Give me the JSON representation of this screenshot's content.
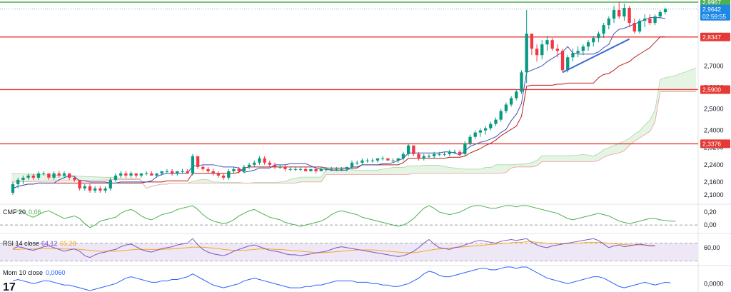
{
  "chart_data": [
    {
      "type": "candlestick",
      "panel": "price",
      "ylim": [
        2.07,
        3.0
      ],
      "y_ticks": [
        "2,7000",
        "2,6000",
        "2,5000",
        "2,4000",
        "2,3200",
        "2,2400",
        "2,1600",
        "2,1000"
      ],
      "candles": [
        [
          2.11,
          2.16,
          2.1,
          2.15
        ],
        [
          2.15,
          2.18,
          2.13,
          2.17
        ],
        [
          2.17,
          2.19,
          2.15,
          2.18
        ],
        [
          2.18,
          2.2,
          2.17,
          2.19
        ],
        [
          2.19,
          2.2,
          2.17,
          2.18
        ],
        [
          2.18,
          2.21,
          2.17,
          2.2
        ],
        [
          2.2,
          2.21,
          2.19,
          2.2
        ],
        [
          2.2,
          2.2,
          2.17,
          2.18
        ],
        [
          2.18,
          2.21,
          2.17,
          2.2
        ],
        [
          2.2,
          2.21,
          2.18,
          2.19
        ],
        [
          2.19,
          2.21,
          2.18,
          2.2
        ],
        [
          2.2,
          2.2,
          2.17,
          2.18
        ],
        [
          2.18,
          2.19,
          2.16,
          2.17
        ],
        [
          2.17,
          2.17,
          2.12,
          2.13
        ],
        [
          2.13,
          2.15,
          2.12,
          2.14
        ],
        [
          2.14,
          2.15,
          2.11,
          2.12
        ],
        [
          2.12,
          2.14,
          2.11,
          2.13
        ],
        [
          2.13,
          2.14,
          2.11,
          2.12
        ],
        [
          2.12,
          2.14,
          2.11,
          2.13
        ],
        [
          2.13,
          2.18,
          2.12,
          2.17
        ],
        [
          2.17,
          2.2,
          2.16,
          2.19
        ],
        [
          2.19,
          2.21,
          2.18,
          2.2
        ],
        [
          2.2,
          2.21,
          2.18,
          2.19
        ],
        [
          2.19,
          2.21,
          2.18,
          2.2
        ],
        [
          2.2,
          2.2,
          2.18,
          2.19
        ],
        [
          2.19,
          2.2,
          2.18,
          2.2
        ],
        [
          2.2,
          2.21,
          2.19,
          2.2
        ],
        [
          2.2,
          2.21,
          2.19,
          2.19
        ],
        [
          2.19,
          2.2,
          2.18,
          2.2
        ],
        [
          2.2,
          2.21,
          2.19,
          2.21
        ],
        [
          2.21,
          2.22,
          2.2,
          2.21
        ],
        [
          2.21,
          2.22,
          2.19,
          2.2
        ],
        [
          2.2,
          2.21,
          2.19,
          2.21
        ],
        [
          2.21,
          2.22,
          2.2,
          2.21
        ],
        [
          2.21,
          2.22,
          2.2,
          2.2
        ],
        [
          2.2,
          2.29,
          2.19,
          2.28
        ],
        [
          2.28,
          2.28,
          2.22,
          2.23
        ],
        [
          2.23,
          2.24,
          2.21,
          2.22
        ],
        [
          2.22,
          2.23,
          2.2,
          2.21
        ],
        [
          2.21,
          2.22,
          2.19,
          2.2
        ],
        [
          2.2,
          2.21,
          2.18,
          2.19
        ],
        [
          2.19,
          2.2,
          2.17,
          2.18
        ],
        [
          2.18,
          2.22,
          2.17,
          2.21
        ],
        [
          2.21,
          2.23,
          2.2,
          2.22
        ],
        [
          2.22,
          2.23,
          2.2,
          2.21
        ],
        [
          2.21,
          2.24,
          2.2,
          2.23
        ],
        [
          2.23,
          2.25,
          2.22,
          2.24
        ],
        [
          2.24,
          2.26,
          2.23,
          2.25
        ],
        [
          2.25,
          2.28,
          2.24,
          2.27
        ],
        [
          2.27,
          2.28,
          2.24,
          2.25
        ],
        [
          2.25,
          2.26,
          2.23,
          2.24
        ],
        [
          2.24,
          2.25,
          2.22,
          2.23
        ],
        [
          2.23,
          2.24,
          2.22,
          2.23
        ],
        [
          2.23,
          2.24,
          2.21,
          2.22
        ],
        [
          2.22,
          2.23,
          2.21,
          2.22
        ],
        [
          2.22,
          2.23,
          2.21,
          2.22
        ],
        [
          2.22,
          2.23,
          2.21,
          2.22
        ],
        [
          2.22,
          2.23,
          2.21,
          2.21
        ],
        [
          2.21,
          2.22,
          2.21,
          2.22
        ],
        [
          2.22,
          2.22,
          2.2,
          2.21
        ],
        [
          2.21,
          2.23,
          2.21,
          2.22
        ],
        [
          2.22,
          2.23,
          2.21,
          2.22
        ],
        [
          2.22,
          2.23,
          2.21,
          2.22
        ],
        [
          2.22,
          2.23,
          2.21,
          2.22
        ],
        [
          2.22,
          2.23,
          2.21,
          2.22
        ],
        [
          2.22,
          2.23,
          2.21,
          2.23
        ],
        [
          2.23,
          2.26,
          2.22,
          2.25
        ],
        [
          2.25,
          2.26,
          2.24,
          2.25
        ],
        [
          2.25,
          2.27,
          2.24,
          2.26
        ],
        [
          2.26,
          2.27,
          2.25,
          2.26
        ],
        [
          2.26,
          2.27,
          2.25,
          2.26
        ],
        [
          2.26,
          2.27,
          2.25,
          2.27
        ],
        [
          2.27,
          2.28,
          2.26,
          2.27
        ],
        [
          2.27,
          2.27,
          2.26,
          2.26
        ],
        [
          2.26,
          2.27,
          2.25,
          2.26
        ],
        [
          2.26,
          2.27,
          2.25,
          2.27
        ],
        [
          2.27,
          2.3,
          2.26,
          2.29
        ],
        [
          2.29,
          2.34,
          2.28,
          2.33
        ],
        [
          2.33,
          2.33,
          2.28,
          2.29
        ],
        [
          2.29,
          2.3,
          2.26,
          2.27
        ],
        [
          2.27,
          2.29,
          2.26,
          2.28
        ],
        [
          2.28,
          2.29,
          2.27,
          2.28
        ],
        [
          2.28,
          2.3,
          2.27,
          2.29
        ],
        [
          2.29,
          2.3,
          2.28,
          2.29
        ],
        [
          2.29,
          2.3,
          2.28,
          2.29
        ],
        [
          2.29,
          2.31,
          2.28,
          2.3
        ],
        [
          2.3,
          2.31,
          2.29,
          2.3
        ],
        [
          2.3,
          2.31,
          2.28,
          2.29
        ],
        [
          2.29,
          2.35,
          2.28,
          2.34
        ],
        [
          2.34,
          2.38,
          2.33,
          2.37
        ],
        [
          2.37,
          2.4,
          2.36,
          2.39
        ],
        [
          2.39,
          2.41,
          2.37,
          2.4
        ],
        [
          2.4,
          2.42,
          2.38,
          2.41
        ],
        [
          2.41,
          2.44,
          2.4,
          2.43
        ],
        [
          2.43,
          2.46,
          2.42,
          2.45
        ],
        [
          2.45,
          2.5,
          2.44,
          2.49
        ],
        [
          2.49,
          2.53,
          2.48,
          2.52
        ],
        [
          2.52,
          2.56,
          2.51,
          2.55
        ],
        [
          2.55,
          2.59,
          2.54,
          2.58
        ],
        [
          2.58,
          2.68,
          2.57,
          2.67
        ],
        [
          2.67,
          2.96,
          2.62,
          2.85
        ],
        [
          2.85,
          2.85,
          2.75,
          2.78
        ],
        [
          2.78,
          2.8,
          2.72,
          2.75
        ],
        [
          2.75,
          2.82,
          2.73,
          2.8
        ],
        [
          2.8,
          2.84,
          2.77,
          2.82
        ],
        [
          2.82,
          2.83,
          2.77,
          2.78
        ],
        [
          2.78,
          2.8,
          2.74,
          2.77
        ],
        [
          2.77,
          2.78,
          2.67,
          2.68
        ],
        [
          2.68,
          2.75,
          2.67,
          2.74
        ],
        [
          2.74,
          2.78,
          2.72,
          2.76
        ],
        [
          2.76,
          2.79,
          2.74,
          2.77
        ],
        [
          2.77,
          2.8,
          2.75,
          2.79
        ],
        [
          2.79,
          2.82,
          2.77,
          2.81
        ],
        [
          2.81,
          2.84,
          2.79,
          2.83
        ],
        [
          2.83,
          2.86,
          2.81,
          2.85
        ],
        [
          2.85,
          2.9,
          2.83,
          2.89
        ],
        [
          2.89,
          2.93,
          2.87,
          2.92
        ],
        [
          2.92,
          2.98,
          2.9,
          2.96
        ],
        [
          2.96,
          3.0,
          2.92,
          2.93
        ],
        [
          2.93,
          2.99,
          2.91,
          2.97
        ],
        [
          2.97,
          2.98,
          2.88,
          2.9
        ],
        [
          2.9,
          2.92,
          2.85,
          2.86
        ],
        [
          2.86,
          2.92,
          2.85,
          2.91
        ],
        [
          2.91,
          2.94,
          2.88,
          2.92
        ],
        [
          2.92,
          2.94,
          2.89,
          2.9
        ],
        [
          2.9,
          2.94,
          2.89,
          2.93
        ],
        [
          2.93,
          2.96,
          2.92,
          2.95
        ],
        [
          2.95,
          2.97,
          2.94,
          2.964
        ]
      ],
      "horizontal_levels": [
        {
          "value": 2.9967,
          "label": "2,9967",
          "color": "#4caf50"
        },
        {
          "value": 2.8347,
          "label": "2,8347",
          "color": "#e53935"
        },
        {
          "value": 2.59,
          "label": "2,5900",
          "color": "#e53935"
        },
        {
          "value": 2.3376,
          "label": "2,3376",
          "color": "#e53935"
        }
      ],
      "last_price": {
        "value": 2.9642,
        "label": "2,9642",
        "countdown": "02:59:55",
        "color": "#1e88e5"
      }
    },
    {
      "type": "line",
      "panel": "cmf",
      "name": "CMF 20",
      "value_label": "0,06",
      "ylim": [
        -0.12,
        0.3
      ],
      "y_ticks": [
        "0,20",
        "0,00"
      ],
      "color": "#4caf50",
      "values": [
        0.18,
        0.22,
        0.2,
        0.15,
        0.12,
        0.16,
        0.2,
        0.22,
        0.18,
        0.14,
        0.1,
        0.12,
        0.14,
        0.1,
        0.02,
        -0.04,
        0.0,
        0.06,
        0.08,
        0.1,
        0.12,
        0.18,
        0.22,
        0.24,
        0.2,
        0.14,
        0.1,
        0.08,
        0.12,
        0.16,
        0.18,
        0.2,
        0.24,
        0.26,
        0.28,
        0.3,
        0.24,
        0.16,
        0.1,
        0.06,
        0.04,
        0.02,
        0.04,
        0.08,
        0.14,
        0.18,
        0.22,
        0.24,
        0.2,
        0.16,
        0.12,
        0.1,
        0.08,
        0.04,
        0.02,
        0.0,
        -0.02,
        0.0,
        0.02,
        0.04,
        0.06,
        0.1,
        0.16,
        0.2,
        0.22,
        0.2,
        0.18,
        0.16,
        0.12,
        0.1,
        0.08,
        0.06,
        0.04,
        0.02,
        0.0,
        -0.02,
        0.0,
        0.04,
        0.1,
        0.18,
        0.26,
        0.3,
        0.26,
        0.2,
        0.18,
        0.16,
        0.18,
        0.2,
        0.24,
        0.28,
        0.3,
        0.3,
        0.28,
        0.26,
        0.26,
        0.28,
        0.3,
        0.3,
        0.28,
        0.3,
        0.3,
        0.28,
        0.26,
        0.24,
        0.22,
        0.2,
        0.18,
        0.14,
        0.1,
        0.08,
        0.1,
        0.12,
        0.14,
        0.16,
        0.18,
        0.16,
        0.14,
        0.1,
        0.06,
        0.04,
        0.02,
        0.04,
        0.06,
        0.08,
        0.1,
        0.1,
        0.08,
        0.07,
        0.06,
        0.06
      ]
    },
    {
      "type": "line",
      "panel": "rsi",
      "name": "RSI 14 close",
      "value_label": "64,12",
      "ma_label": "65,28",
      "ylim": [
        20,
        90
      ],
      "y_ticks": [
        "60,00"
      ],
      "bands": [
        70,
        30
      ],
      "color": "#7e57c2",
      "ma_color": "#f9a825",
      "values": [
        58,
        62,
        60,
        56,
        54,
        58,
        62,
        64,
        60,
        56,
        52,
        55,
        57,
        52,
        42,
        38,
        44,
        48,
        50,
        54,
        56,
        62,
        66,
        68,
        62,
        56,
        52,
        50,
        54,
        58,
        60,
        62,
        66,
        68,
        70,
        80,
        66,
        56,
        50,
        46,
        44,
        42,
        46,
        52,
        56,
        60,
        64,
        66,
        62,
        58,
        54,
        52,
        50,
        46,
        44,
        44,
        42,
        44,
        46,
        48,
        50,
        52,
        56,
        60,
        62,
        60,
        58,
        56,
        54,
        52,
        50,
        48,
        46,
        44,
        42,
        40,
        42,
        46,
        52,
        60,
        70,
        78,
        68,
        60,
        58,
        56,
        60,
        62,
        66,
        70,
        74,
        76,
        74,
        72,
        70,
        74,
        76,
        78,
        76,
        78,
        80,
        72,
        66,
        62,
        60,
        64,
        66,
        68,
        70,
        72,
        74,
        76,
        78,
        80,
        76,
        68,
        60,
        64,
        66,
        62,
        64,
        66,
        68,
        66,
        64,
        64
      ],
      "ma": [
        56,
        56,
        57,
        57,
        57,
        57,
        58,
        58,
        58,
        58,
        57,
        57,
        57,
        56,
        55,
        54,
        53,
        52,
        52,
        52,
        52,
        53,
        54,
        55,
        56,
        56,
        56,
        56,
        56,
        56,
        57,
        57,
        58,
        59,
        60,
        61,
        61,
        61,
        60,
        59,
        58,
        56,
        55,
        54,
        54,
        54,
        55,
        56,
        57,
        57,
        57,
        56,
        56,
        55,
        54,
        53,
        52,
        51,
        50,
        49,
        49,
        49,
        50,
        51,
        52,
        53,
        54,
        55,
        55,
        55,
        55,
        54,
        53,
        52,
        51,
        50,
        49,
        49,
        49,
        50,
        52,
        54,
        56,
        57,
        58,
        59,
        60,
        61,
        62,
        63,
        64,
        65,
        66,
        67,
        68,
        69,
        70,
        71,
        72,
        72,
        73,
        73,
        72,
        71,
        70,
        69,
        69,
        69,
        69,
        70,
        70,
        71,
        72,
        72,
        72,
        71,
        70,
        69,
        68,
        67,
        66,
        66,
        66,
        66,
        65,
        65
      ]
    },
    {
      "type": "line",
      "panel": "momentum",
      "name": "Mom 10 close",
      "value_label": "0,0060",
      "ylim": [
        -0.06,
        0.12
      ],
      "y_ticks": [
        "0,0000"
      ],
      "color": "#2962ff",
      "values": [
        0.02,
        0.03,
        0.02,
        0.01,
        0.0,
        0.01,
        0.02,
        0.02,
        0.01,
        0.0,
        -0.01,
        -0.01,
        -0.02,
        -0.03,
        -0.04,
        -0.05,
        -0.04,
        -0.03,
        -0.02,
        -0.01,
        0.0,
        0.02,
        0.04,
        0.05,
        0.04,
        0.03,
        0.02,
        0.01,
        0.01,
        0.02,
        0.02,
        0.03,
        0.03,
        0.04,
        0.05,
        0.07,
        0.05,
        0.03,
        0.01,
        -0.01,
        -0.02,
        -0.03,
        -0.02,
        -0.01,
        0.0,
        0.02,
        0.03,
        0.04,
        0.03,
        0.02,
        0.01,
        0.0,
        -0.01,
        -0.02,
        -0.03,
        -0.03,
        -0.03,
        -0.02,
        -0.02,
        -0.01,
        -0.01,
        0.0,
        0.01,
        0.02,
        0.02,
        0.02,
        0.02,
        0.01,
        0.01,
        0.01,
        0.0,
        0.0,
        -0.01,
        -0.01,
        -0.02,
        -0.02,
        -0.01,
        0.0,
        0.02,
        0.04,
        0.07,
        0.09,
        0.08,
        0.06,
        0.05,
        0.05,
        0.06,
        0.07,
        0.08,
        0.09,
        0.1,
        0.11,
        0.11,
        0.1,
        0.1,
        0.11,
        0.12,
        0.12,
        0.11,
        0.12,
        0.12,
        0.1,
        0.08,
        0.06,
        0.04,
        0.03,
        0.02,
        0.01,
        0.0,
        0.01,
        0.02,
        0.03,
        0.04,
        0.05,
        0.05,
        0.04,
        0.02,
        0.0,
        -0.02,
        -0.03,
        -0.02,
        -0.01,
        0.0,
        0.01,
        0.0,
        -0.01,
        0.0,
        0.01,
        0.006
      ]
    }
  ],
  "logo_text": "17",
  "colors": {
    "up": "#089981",
    "down": "#f23645",
    "kijun": "#b71c1c",
    "tenkan": "#3f51b5",
    "trendline": "#3d6ad6",
    "cloud_bull": "#e6f4e4",
    "cloud_bear": "#fde3e3"
  }
}
